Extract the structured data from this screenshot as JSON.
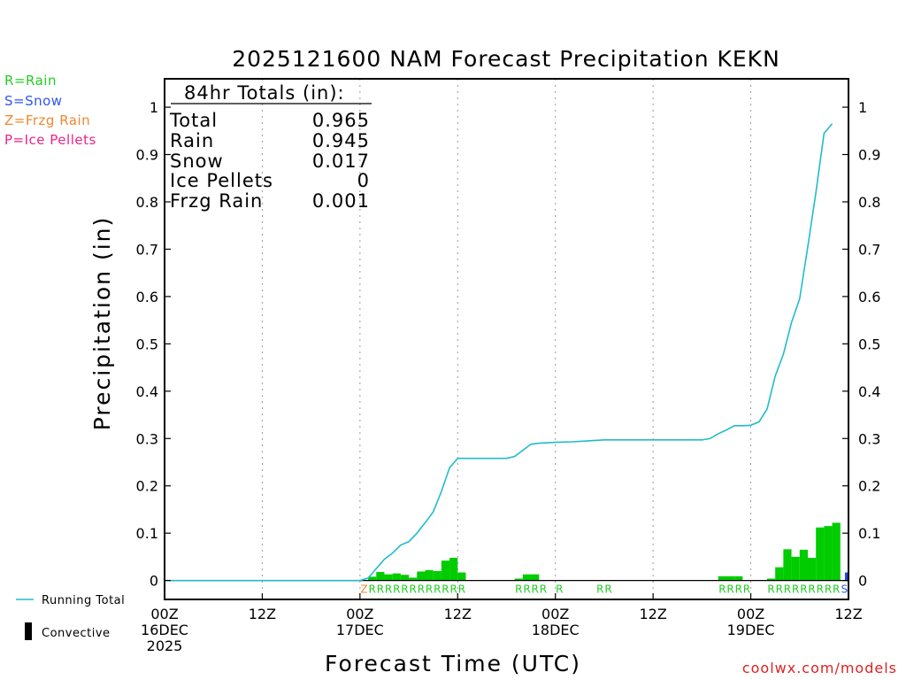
{
  "title": "2025121600 NAM Forecast Precipitation KEKN",
  "ylabel": "Precipitation (in)",
  "xlabel": "Forecast Time (UTC)",
  "credit": "coolwx.com/models",
  "precip_legend": [
    {
      "text": "R=Rain",
      "color": "#22cc22"
    },
    {
      "text": "S=Snow",
      "color": "#3355ee"
    },
    {
      "text": "Z=Frzg Rain",
      "color": "#ee8833"
    },
    {
      "text": "P=Ice Pellets",
      "color": "#ee2288"
    }
  ],
  "bottom_legend": {
    "running_total": "Running Total",
    "convective": "Convective",
    "running_color": "#22bbcc",
    "convective_color": "#000000"
  },
  "totals": {
    "header": "84hr Totals (in):",
    "rows": [
      {
        "label": "Total",
        "value": "0.965"
      },
      {
        "label": "Rain",
        "value": "0.945"
      },
      {
        "label": "Snow",
        "value": "0.017"
      },
      {
        "label": "Ice Pellets",
        "value": "0"
      },
      {
        "label": "Frzg Rain",
        "value": "0.001"
      }
    ]
  },
  "chart_data": {
    "type": "bar",
    "title": "2025121600 NAM Forecast Precipitation KEKN",
    "xlabel": "Forecast Time (UTC)",
    "ylabel": "Precipitation (in)",
    "xlim": [
      0,
      84
    ],
    "ylim": [
      -0.04,
      1.06
    ],
    "yticks": [
      "0",
      "0.1",
      "0.2",
      "0.3",
      "0.4",
      "0.5",
      "0.6",
      "0.7",
      "0.8",
      "0.9",
      "1"
    ],
    "yvalues": [
      0,
      0.1,
      0.2,
      0.3,
      0.4,
      0.5,
      0.6,
      0.7,
      0.8,
      0.9,
      1
    ],
    "xticks": [
      {
        "hour": 0,
        "l1": "00Z",
        "l2": "16DEC",
        "l3": "2025"
      },
      {
        "hour": 12,
        "l1": "12Z",
        "l2": "",
        "l3": ""
      },
      {
        "hour": 24,
        "l1": "00Z",
        "l2": "17DEC",
        "l3": ""
      },
      {
        "hour": 36,
        "l1": "12Z",
        "l2": "",
        "l3": ""
      },
      {
        "hour": 48,
        "l1": "00Z",
        "l2": "18DEC",
        "l3": ""
      },
      {
        "hour": 60,
        "l1": "12Z",
        "l2": "",
        "l3": ""
      },
      {
        "hour": 72,
        "l1": "00Z",
        "l2": "19DEC",
        "l3": ""
      },
      {
        "hour": 84,
        "l1": "12Z",
        "l2": "",
        "l3": ""
      }
    ],
    "grid_hours": [
      12,
      24,
      36,
      48,
      60,
      72
    ],
    "bar_width_hours": 1,
    "bar_color": "#00cc00",
    "bars": [
      {
        "hour": 26,
        "value": 0.008
      },
      {
        "hour": 27,
        "value": 0.018
      },
      {
        "hour": 28,
        "value": 0.013
      },
      {
        "hour": 29,
        "value": 0.015
      },
      {
        "hour": 30,
        "value": 0.012
      },
      {
        "hour": 31,
        "value": 0.006
      },
      {
        "hour": 32,
        "value": 0.019
      },
      {
        "hour": 33,
        "value": 0.022
      },
      {
        "hour": 34,
        "value": 0.02
      },
      {
        "hour": 35,
        "value": 0.042
      },
      {
        "hour": 36,
        "value": 0.048
      },
      {
        "hour": 37,
        "value": 0.017
      },
      {
        "hour": 44,
        "value": 0.004
      },
      {
        "hour": 45,
        "value": 0.013
      },
      {
        "hour": 46,
        "value": 0.013
      },
      {
        "hour": 69,
        "value": 0.009
      },
      {
        "hour": 70,
        "value": 0.009
      },
      {
        "hour": 71,
        "value": 0.009
      },
      {
        "hour": 75,
        "value": 0.004
      },
      {
        "hour": 76,
        "value": 0.028
      },
      {
        "hour": 77,
        "value": 0.066
      },
      {
        "hour": 78,
        "value": 0.05
      },
      {
        "hour": 79,
        "value": 0.065
      },
      {
        "hour": 80,
        "value": 0.048
      },
      {
        "hour": 81,
        "value": 0.112
      },
      {
        "hour": 82,
        "value": 0.115
      },
      {
        "hour": 83,
        "value": 0.122
      }
    ],
    "snow_bars": [
      {
        "hour": 84,
        "value": 0.017,
        "color": "#2244ee"
      }
    ],
    "running_total": {
      "name": "Running Total",
      "color": "#22bbcc",
      "points": [
        [
          0,
          0
        ],
        [
          24,
          0
        ],
        [
          25,
          0.005
        ],
        [
          26,
          0.025
        ],
        [
          27,
          0.045
        ],
        [
          28,
          0.058
        ],
        [
          29,
          0.075
        ],
        [
          30,
          0.082
        ],
        [
          31,
          0.1
        ],
        [
          32,
          0.122
        ],
        [
          33,
          0.145
        ],
        [
          34,
          0.188
        ],
        [
          35,
          0.238
        ],
        [
          36,
          0.258
        ],
        [
          42,
          0.258
        ],
        [
          43,
          0.262
        ],
        [
          44,
          0.275
        ],
        [
          45,
          0.288
        ],
        [
          46,
          0.29
        ],
        [
          48,
          0.292
        ],
        [
          50,
          0.293
        ],
        [
          52,
          0.295
        ],
        [
          54,
          0.297
        ],
        [
          66,
          0.297
        ],
        [
          67,
          0.3
        ],
        [
          68,
          0.31
        ],
        [
          69,
          0.318
        ],
        [
          70,
          0.327
        ],
        [
          71,
          0.327
        ],
        [
          72,
          0.328
        ],
        [
          73,
          0.335
        ],
        [
          74,
          0.362
        ],
        [
          75,
          0.432
        ],
        [
          76,
          0.478
        ],
        [
          77,
          0.545
        ],
        [
          78,
          0.595
        ],
        [
          79,
          0.705
        ],
        [
          80,
          0.82
        ],
        [
          81,
          0.945
        ],
        [
          82,
          0.965
        ]
      ]
    },
    "ptype_labels": [
      {
        "hour": 24.5,
        "text": "Z",
        "color": "#ee8833"
      },
      {
        "hour": 25.5,
        "text": "R",
        "color": "#22cc22"
      },
      {
        "hour": 26.5,
        "text": "R",
        "color": "#22cc22"
      },
      {
        "hour": 27.5,
        "text": "R",
        "color": "#22cc22"
      },
      {
        "hour": 28.5,
        "text": "R",
        "color": "#22cc22"
      },
      {
        "hour": 29.5,
        "text": "R",
        "color": "#22cc22"
      },
      {
        "hour": 30.5,
        "text": "R",
        "color": "#22cc22"
      },
      {
        "hour": 31.5,
        "text": "R",
        "color": "#22cc22"
      },
      {
        "hour": 32.5,
        "text": "R",
        "color": "#22cc22"
      },
      {
        "hour": 33.5,
        "text": "R",
        "color": "#22cc22"
      },
      {
        "hour": 34.5,
        "text": "R",
        "color": "#22cc22"
      },
      {
        "hour": 35.5,
        "text": "R",
        "color": "#22cc22"
      },
      {
        "hour": 36.5,
        "text": "R",
        "color": "#22cc22"
      },
      {
        "hour": 43.5,
        "text": "R",
        "color": "#22cc22"
      },
      {
        "hour": 44.5,
        "text": "R",
        "color": "#22cc22"
      },
      {
        "hour": 45.5,
        "text": "R",
        "color": "#22cc22"
      },
      {
        "hour": 46.5,
        "text": "R",
        "color": "#22cc22"
      },
      {
        "hour": 48.5,
        "text": "R",
        "color": "#22cc22"
      },
      {
        "hour": 53.5,
        "text": "R",
        "color": "#22cc22"
      },
      {
        "hour": 54.5,
        "text": "R",
        "color": "#22cc22"
      },
      {
        "hour": 68.5,
        "text": "R",
        "color": "#22cc22"
      },
      {
        "hour": 69.5,
        "text": "R",
        "color": "#22cc22"
      },
      {
        "hour": 70.5,
        "text": "R",
        "color": "#22cc22"
      },
      {
        "hour": 71.5,
        "text": "R",
        "color": "#22cc22"
      },
      {
        "hour": 74.5,
        "text": "R",
        "color": "#22cc22"
      },
      {
        "hour": 75.5,
        "text": "R",
        "color": "#22cc22"
      },
      {
        "hour": 76.5,
        "text": "R",
        "color": "#22cc22"
      },
      {
        "hour": 77.5,
        "text": "R",
        "color": "#22cc22"
      },
      {
        "hour": 78.5,
        "text": "R",
        "color": "#22cc22"
      },
      {
        "hour": 79.5,
        "text": "R",
        "color": "#22cc22"
      },
      {
        "hour": 80.5,
        "text": "R",
        "color": "#22cc22"
      },
      {
        "hour": 81.5,
        "text": "R",
        "color": "#22cc22"
      },
      {
        "hour": 82.5,
        "text": "R",
        "color": "#22cc22"
      },
      {
        "hour": 83.5,
        "text": "S",
        "color": "#3355ee"
      }
    ]
  }
}
